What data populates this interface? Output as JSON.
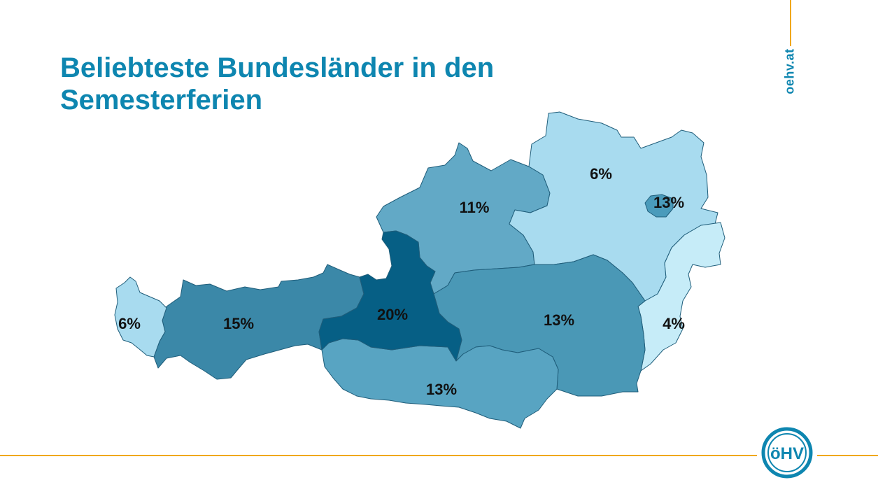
{
  "slide": {
    "title": "Beliebteste Bundesländer in den Semesterferien",
    "brand": "oehv.at",
    "logo_text": "öHV"
  },
  "map": {
    "regions": [
      {
        "id": "niederoesterreich",
        "label": "6%",
        "value": 6,
        "color": "#a8dbef"
      },
      {
        "id": "wien",
        "label": "13%",
        "value": 13,
        "color": "#4a9bbb"
      },
      {
        "id": "oberoesterreich",
        "label": "11%",
        "value": 11,
        "color": "#62a9c6"
      },
      {
        "id": "burgenland",
        "label": "4%",
        "value": 4,
        "color": "#c6ecf8"
      },
      {
        "id": "vorarlberg",
        "label": "6%",
        "value": 6,
        "color": "#a8dbef"
      },
      {
        "id": "tirol",
        "label": "15%",
        "value": 15,
        "color": "#3b88a8"
      },
      {
        "id": "salzburg",
        "label": "20%",
        "value": 20,
        "color": "#065f85"
      },
      {
        "id": "steiermark",
        "label": "13%",
        "value": 13,
        "color": "#4a98b6"
      },
      {
        "id": "kaernten",
        "label": "13%",
        "value": 13,
        "color": "#58a4c2"
      }
    ]
  },
  "colors": {
    "accent": "#0e86b0",
    "line": "#f0a81c"
  }
}
